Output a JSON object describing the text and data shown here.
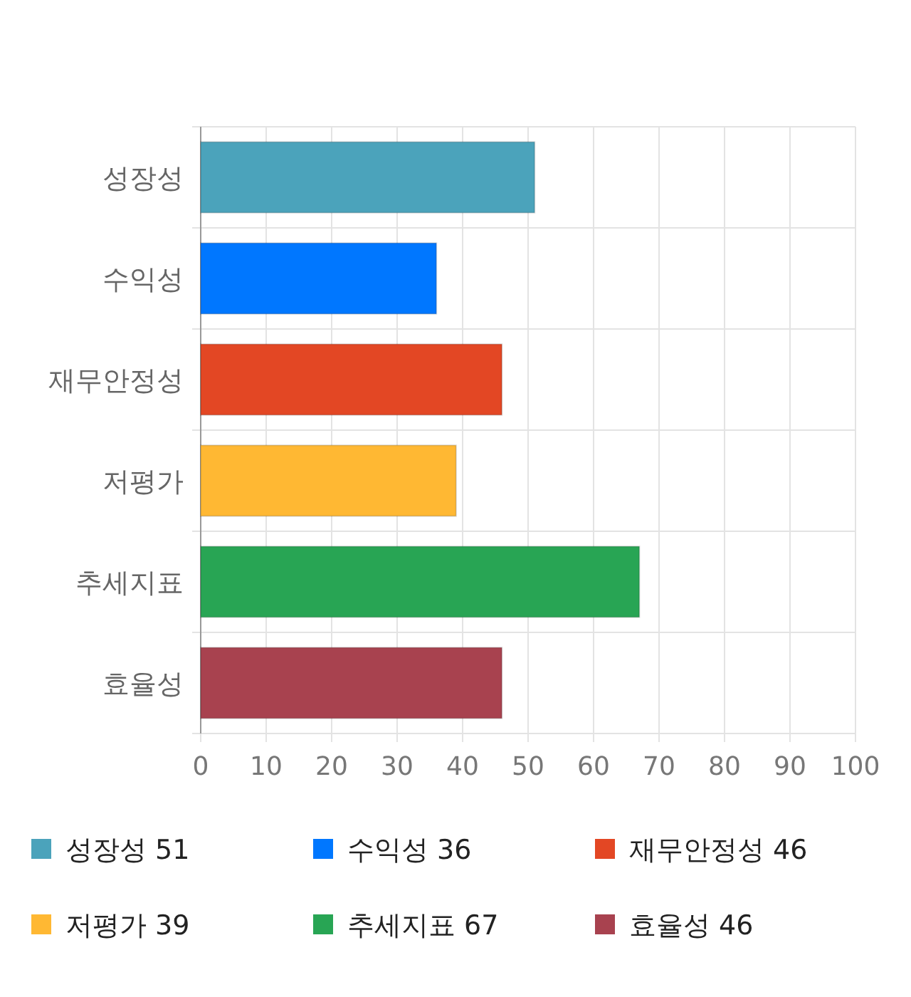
{
  "chart_data": {
    "type": "bar",
    "orientation": "horizontal",
    "stacked": true,
    "categories": [
      "성장성",
      "수익성",
      "재무안정성",
      "저평가",
      "추세지표",
      "효율성"
    ],
    "series": [
      {
        "name": "성장성 51",
        "color": "#4ba3bb",
        "values": [
          51,
          null,
          null,
          null,
          null,
          null
        ]
      },
      {
        "name": "수익성 36",
        "color": "#0077ff",
        "values": [
          null,
          36,
          null,
          null,
          null,
          null
        ]
      },
      {
        "name": "재무안정성 46",
        "color": "#e34724",
        "values": [
          null,
          null,
          46,
          null,
          null,
          null
        ]
      },
      {
        "name": "저평가 39",
        "color": "#ffb833",
        "values": [
          null,
          null,
          null,
          39,
          null,
          null
        ]
      },
      {
        "name": "추세지표 67",
        "color": "#28a554",
        "values": [
          null,
          null,
          null,
          null,
          67,
          null
        ]
      },
      {
        "name": "효율성 46",
        "color": "#a8424f",
        "values": [
          null,
          null,
          null,
          null,
          null,
          46
        ]
      }
    ],
    "xlim": [
      0,
      100
    ],
    "xticks": [
      0,
      10,
      20,
      30,
      40,
      50,
      60,
      70,
      80,
      90,
      100
    ],
    "grid": true,
    "legend": "bottom"
  }
}
